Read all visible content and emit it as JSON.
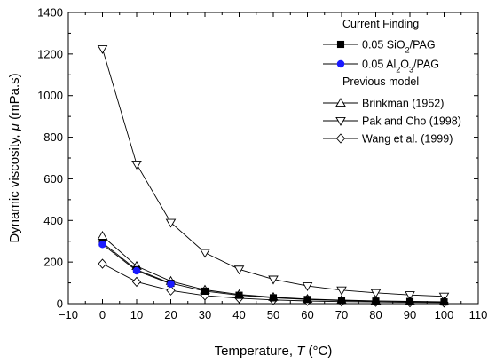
{
  "chart_data": {
    "type": "line",
    "xlabel": {
      "main": "Temperature, ",
      "var": "T",
      "unit": " (°C)"
    },
    "ylabel": {
      "main": "Dynamic viscosity, ",
      "var": "μ",
      "unit": " (mPa.s)"
    },
    "xlim": [
      -10,
      110
    ],
    "ylim": [
      0,
      1400
    ],
    "x_ticks": [
      -10,
      0,
      10,
      20,
      30,
      40,
      50,
      60,
      70,
      80,
      90,
      100,
      110
    ],
    "x_tick_labels": [
      "−10",
      "0",
      "10",
      "20",
      "30",
      "40",
      "50",
      "60",
      "70",
      "80",
      "90",
      "100",
      "110"
    ],
    "y_ticks": [
      0,
      200,
      400,
      600,
      800,
      1000,
      1200,
      1400
    ],
    "y_tick_labels": [
      "0",
      "200",
      "400",
      "600",
      "800",
      "1000",
      "1200",
      "1400"
    ],
    "legend_position": "top-right",
    "legend_groups": [
      "Current Finding",
      "Previous model"
    ],
    "series": [
      {
        "name_html": "0.05 SiO<tspan baseline-shift='sub' font-size='9'>2</tspan>/PAG",
        "group": 0,
        "marker": "square-filled",
        "color": "#000000",
        "x": [
          0,
          10,
          20,
          30,
          40,
          50,
          60,
          70,
          80,
          90,
          100
        ],
        "y": [
          293,
          163,
          98,
          60,
          40,
          28,
          20,
          15,
          12,
          10,
          8
        ]
      },
      {
        "name_html": "0.05 Al<tspan baseline-shift='sub' font-size='9'>2</tspan>O<tspan baseline-shift='sub' font-size='9'>3</tspan>/PAG",
        "group": 0,
        "marker": "circle-filled",
        "color": "#1a1aff",
        "x": [
          0,
          10,
          20
        ],
        "y": [
          285,
          158,
          95
        ]
      },
      {
        "name": "Brinkman (1952)",
        "group": 1,
        "marker": "triangle-up",
        "color": "#000000",
        "x": [
          0,
          10,
          20,
          30,
          40,
          50,
          60,
          70,
          80,
          90,
          100
        ],
        "y": [
          325,
          180,
          108,
          66,
          44,
          31,
          22,
          17,
          13,
          11,
          9
        ]
      },
      {
        "name": "Pak and Cho (1998)",
        "group": 1,
        "marker": "triangle-down",
        "color": "#000000",
        "x": [
          0,
          10,
          20,
          30,
          40,
          50,
          60,
          70,
          80,
          90,
          100
        ],
        "y": [
          1225,
          670,
          390,
          245,
          165,
          117,
          85,
          65,
          52,
          42,
          35
        ]
      },
      {
        "name": "Wang et al. (1999)",
        "group": 1,
        "marker": "diamond",
        "color": "#000000",
        "x": [
          0,
          10,
          20,
          30,
          40,
          50,
          60,
          70,
          80,
          90,
          100
        ],
        "y": [
          192,
          105,
          63,
          39,
          26,
          18,
          13,
          10,
          8,
          6,
          5
        ]
      }
    ]
  }
}
